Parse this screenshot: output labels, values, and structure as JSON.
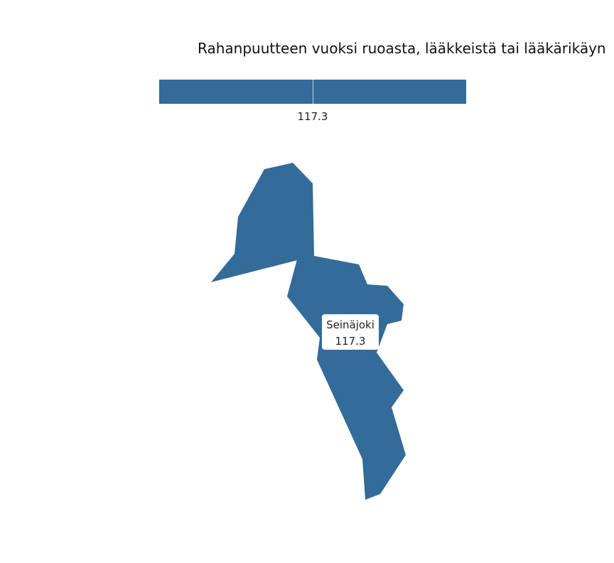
{
  "map": {
    "title": "Rahanpuutteen vuoksi ruoasta, lääkkeistä tai lääkärikäyn",
    "fill_color": "#336b99",
    "legend": {
      "tick_label": "117.3"
    },
    "region": {
      "name": "Seinäjoki",
      "value": "117.3"
    }
  }
}
